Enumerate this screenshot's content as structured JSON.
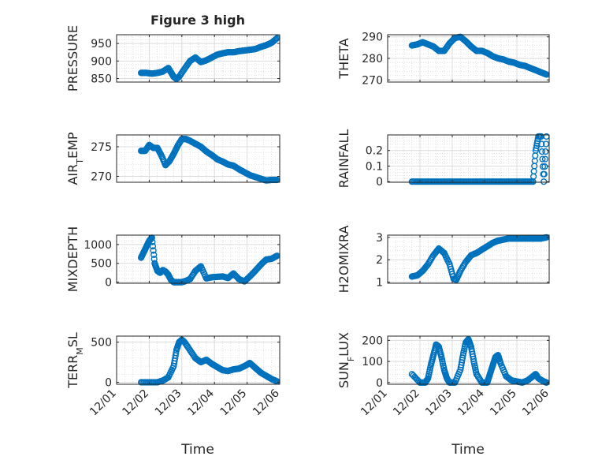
{
  "figure": {
    "title": "Figure 3 high",
    "xlabel": "Time",
    "x_ticks": [
      "12/01",
      "12/02",
      "12/03",
      "12/04",
      "12/05",
      "12/06"
    ],
    "marker_color": "#0072BD"
  },
  "chart_data": [
    {
      "type": "scatter",
      "ylabel": "PRESSURE",
      "yticks": [
        "850",
        "900",
        "950"
      ],
      "ylim": [
        840,
        975
      ],
      "x": [
        "12/01 18:00",
        "12/01 22:00",
        "12/02 02:00",
        "12/02 06:00",
        "12/02 10:00",
        "12/02 14:00",
        "12/02 16:00",
        "12/02 18:00",
        "12/02 20:00",
        "12/02 22:00",
        "12/03 02:00",
        "12/03 06:00",
        "12/03 10:00",
        "12/03 14:00",
        "12/03 18:00",
        "12/03 22:00",
        "12/04 02:00",
        "12/04 06:00",
        "12/04 10:00",
        "12/04 14:00",
        "12/04 18:00",
        "12/04 22:00",
        "12/05 02:00",
        "12/05 06:00",
        "12/05 10:00",
        "12/05 14:00",
        "12/05 18:00",
        "12/05 22:00"
      ],
      "y": [
        866,
        866,
        864,
        866,
        870,
        880,
        868,
        855,
        849,
        855,
        878,
        900,
        910,
        897,
        902,
        910,
        918,
        922,
        925,
        925,
        928,
        930,
        932,
        934,
        940,
        945,
        952,
        965
      ]
    },
    {
      "type": "scatter",
      "ylabel": "THETA",
      "yticks": [
        "270",
        "280",
        "290"
      ],
      "ylim": [
        269,
        291
      ],
      "x": [
        "12/01 18:00",
        "12/01 22:00",
        "12/02 02:00",
        "12/02 06:00",
        "12/02 10:00",
        "12/02 14:00",
        "12/02 18:00",
        "12/02 22:00",
        "12/03 02:00",
        "12/03 06:00",
        "12/03 10:00",
        "12/03 14:00",
        "12/03 18:00",
        "12/03 22:00",
        "12/04 02:00",
        "12/04 06:00",
        "12/04 10:00",
        "12/04 14:00",
        "12/04 18:00",
        "12/04 22:00",
        "12/05 02:00",
        "12/05 06:00",
        "12/05 10:00",
        "12/05 14:00",
        "12/05 18:00",
        "12/05 22:00"
      ],
      "y": [
        286,
        286.5,
        287.5,
        286.5,
        285.5,
        283.5,
        283.5,
        287,
        289.5,
        290,
        288,
        285.5,
        283.5,
        283.5,
        282.5,
        281,
        280,
        279.5,
        278.5,
        278,
        277,
        276.5,
        275.5,
        274.5,
        273.5,
        272.5
      ]
    },
    {
      "type": "scatter",
      "ylabel": "AIR_TEMP",
      "yticks": [
        "270",
        "275"
      ],
      "ylim": [
        269,
        277
      ],
      "x": [
        "12/01 18:00",
        "12/01 21:00",
        "12/02 00:00",
        "12/02 03:00",
        "12/02 06:00",
        "12/02 09:00",
        "12/02 12:00",
        "12/02 15:00",
        "12/02 18:00",
        "12/02 21:00",
        "12/03 00:00",
        "12/03 03:00",
        "12/03 06:00",
        "12/03 10:00",
        "12/03 14:00",
        "12/03 18:00",
        "12/03 22:00",
        "12/04 02:00",
        "12/04 06:00",
        "12/04 10:00",
        "12/04 14:00",
        "12/04 18:00",
        "12/04 22:00",
        "12/05 02:00",
        "12/05 06:00",
        "12/05 10:00",
        "12/05 14:00",
        "12/05 18:00",
        "12/05 22:00"
      ],
      "y": [
        274.3,
        274.3,
        275.3,
        274.8,
        274.8,
        273.5,
        271.9,
        272.6,
        273.8,
        275.2,
        276.3,
        276.3,
        276,
        275.5,
        275,
        274.2,
        273.6,
        272.9,
        272.5,
        272,
        271.8,
        271.2,
        270.7,
        270.2,
        269.9,
        269.6,
        269.3,
        269.4,
        269.4
      ]
    },
    {
      "type": "scatter",
      "ylabel": "RAINFALL",
      "yticks": [
        "0",
        "0.1",
        "0.2"
      ],
      "ylim": [
        -0.004,
        0.3
      ],
      "x": [
        "12/01 18:00",
        "12/02 00:00",
        "12/02 06:00",
        "12/02 12:00",
        "12/02 18:00",
        "12/03 00:00",
        "12/03 06:00",
        "12/03 12:00",
        "12/03 18:00",
        "12/04 00:00",
        "12/04 06:00",
        "12/04 12:00",
        "12/04 18:00",
        "12/05 00:00",
        "12/05 06:00",
        "12/05 12:00",
        "12/05 14:00",
        "12/05 16:00",
        "12/05 18:00",
        "12/05 20:00",
        "12/05 22:00"
      ],
      "y": [
        0,
        0,
        0,
        0,
        0,
        0,
        0,
        0,
        0,
        0,
        0,
        0,
        0,
        0,
        0,
        0,
        0.2,
        0.29,
        0.29,
        0,
        0.29
      ]
    },
    {
      "type": "scatter",
      "ylabel": "MIXDEPTH",
      "yticks": [
        "0",
        "500",
        "1000"
      ],
      "ylim": [
        -30,
        1250
      ],
      "x": [
        "12/01 18:00",
        "12/01 20:00",
        "12/01 22:00",
        "12/02 00:00",
        "12/02 02:00",
        "12/02 04:00",
        "12/02 06:00",
        "12/02 08:00",
        "12/02 10:00",
        "12/02 12:00",
        "12/02 14:00",
        "12/02 16:00",
        "12/02 18:00",
        "12/02 20:00",
        "12/02 22:00",
        "12/03 00:00",
        "12/03 02:00",
        "12/03 06:00",
        "12/03 10:00",
        "12/03 14:00",
        "12/03 18:00",
        "12/03 22:00",
        "12/04 02:00",
        "12/04 06:00",
        "12/04 10:00",
        "12/04 14:00",
        "12/04 18:00",
        "12/04 22:00",
        "12/05 02:00",
        "12/05 06:00",
        "12/05 10:00",
        "12/05 14:00",
        "12/05 18:00",
        "12/05 22:00"
      ],
      "y": [
        650,
        800,
        950,
        1100,
        1180,
        500,
        300,
        250,
        320,
        280,
        200,
        60,
        0,
        0,
        0,
        0,
        20,
        80,
        300,
        420,
        100,
        130,
        140,
        150,
        110,
        230,
        80,
        20,
        150,
        300,
        460,
        600,
        620,
        700
      ]
    },
    {
      "type": "scatter",
      "ylabel": "H2OMIXRA",
      "yticks": [
        "1",
        "2",
        "3"
      ],
      "ylim": [
        0.95,
        3.1
      ],
      "x": [
        "12/01 18:00",
        "12/01 22:00",
        "12/02 02:00",
        "12/02 06:00",
        "12/02 10:00",
        "12/02 14:00",
        "12/02 18:00",
        "12/02 22:00",
        "12/03 01:00",
        "12/03 03:00",
        "12/03 06:00",
        "12/03 10:00",
        "12/03 14:00",
        "12/03 18:00",
        "12/03 22:00",
        "12/04 02:00",
        "12/04 06:00",
        "12/04 10:00",
        "12/04 14:00",
        "12/04 18:00",
        "12/04 22:00",
        "12/05 02:00",
        "12/05 06:00",
        "12/05 10:00",
        "12/05 14:00",
        "12/05 18:00",
        "12/05 22:00"
      ],
      "y": [
        1.25,
        1.3,
        1.5,
        1.8,
        2.2,
        2.5,
        2.3,
        1.8,
        1.15,
        1.1,
        1.5,
        1.9,
        2.2,
        2.3,
        2.45,
        2.6,
        2.75,
        2.85,
        2.9,
        2.95,
        2.95,
        2.95,
        2.95,
        2.95,
        2.95,
        2.95,
        3.0
      ]
    },
    {
      "type": "scatter",
      "ylabel": "TERR_MSL",
      "yticks": [
        "0",
        "500"
      ],
      "ylim": [
        -25,
        575
      ],
      "x": [
        "12/01 18:00",
        "12/02 00:00",
        "12/02 06:00",
        "12/02 10:00",
        "12/02 14:00",
        "12/02 18:00",
        "12/02 20:00",
        "12/02 22:00",
        "12/03 00:00",
        "12/03 02:00",
        "12/03 06:00",
        "12/03 10:00",
        "12/03 14:00",
        "12/03 18:00",
        "12/03 22:00",
        "12/04 02:00",
        "12/04 06:00",
        "12/04 10:00",
        "12/04 14:00",
        "12/04 18:00",
        "12/04 22:00",
        "12/05 02:00",
        "12/05 06:00",
        "12/05 10:00",
        "12/05 14:00",
        "12/05 18:00",
        "12/05 22:00"
      ],
      "y": [
        0,
        0,
        0,
        20,
        60,
        200,
        400,
        500,
        530,
        500,
        400,
        300,
        250,
        280,
        230,
        190,
        150,
        140,
        160,
        170,
        200,
        240,
        180,
        120,
        80,
        40,
        10
      ]
    },
    {
      "type": "scatter",
      "ylabel": "SUN_FLUX",
      "yticks": [
        "0",
        "100",
        "200"
      ],
      "ylim": [
        -8,
        220
      ],
      "x": [
        "12/01 18:00",
        "12/02 00:00",
        "12/02 04:00",
        "12/02 06:00",
        "12/02 08:00",
        "12/02 10:00",
        "12/02 12:00",
        "12/02 14:00",
        "12/02 16:00",
        "12/02 18:00",
        "12/02 20:00",
        "12/02 22:00",
        "12/03 02:00",
        "12/03 06:00",
        "12/03 08:00",
        "12/03 10:00",
        "12/03 12:00",
        "12/03 14:00",
        "12/03 16:00",
        "12/03 18:00",
        "12/03 22:00",
        "12/04 02:00",
        "12/04 04:00",
        "12/04 06:00",
        "12/04 08:00",
        "12/04 10:00",
        "12/04 12:00",
        "12/04 16:00",
        "12/04 20:00",
        "12/05 00:00",
        "12/05 04:00",
        "12/05 08:00",
        "12/05 12:00",
        "12/05 14:00",
        "12/05 16:00",
        "12/05 20:00",
        "12/05 22:00"
      ],
      "y": [
        40,
        0,
        0,
        20,
        80,
        130,
        180,
        170,
        120,
        60,
        20,
        0,
        0,
        60,
        130,
        190,
        205,
        170,
        100,
        40,
        0,
        0,
        40,
        80,
        120,
        130,
        90,
        30,
        10,
        5,
        0,
        10,
        30,
        40,
        20,
        5,
        0
      ]
    }
  ]
}
